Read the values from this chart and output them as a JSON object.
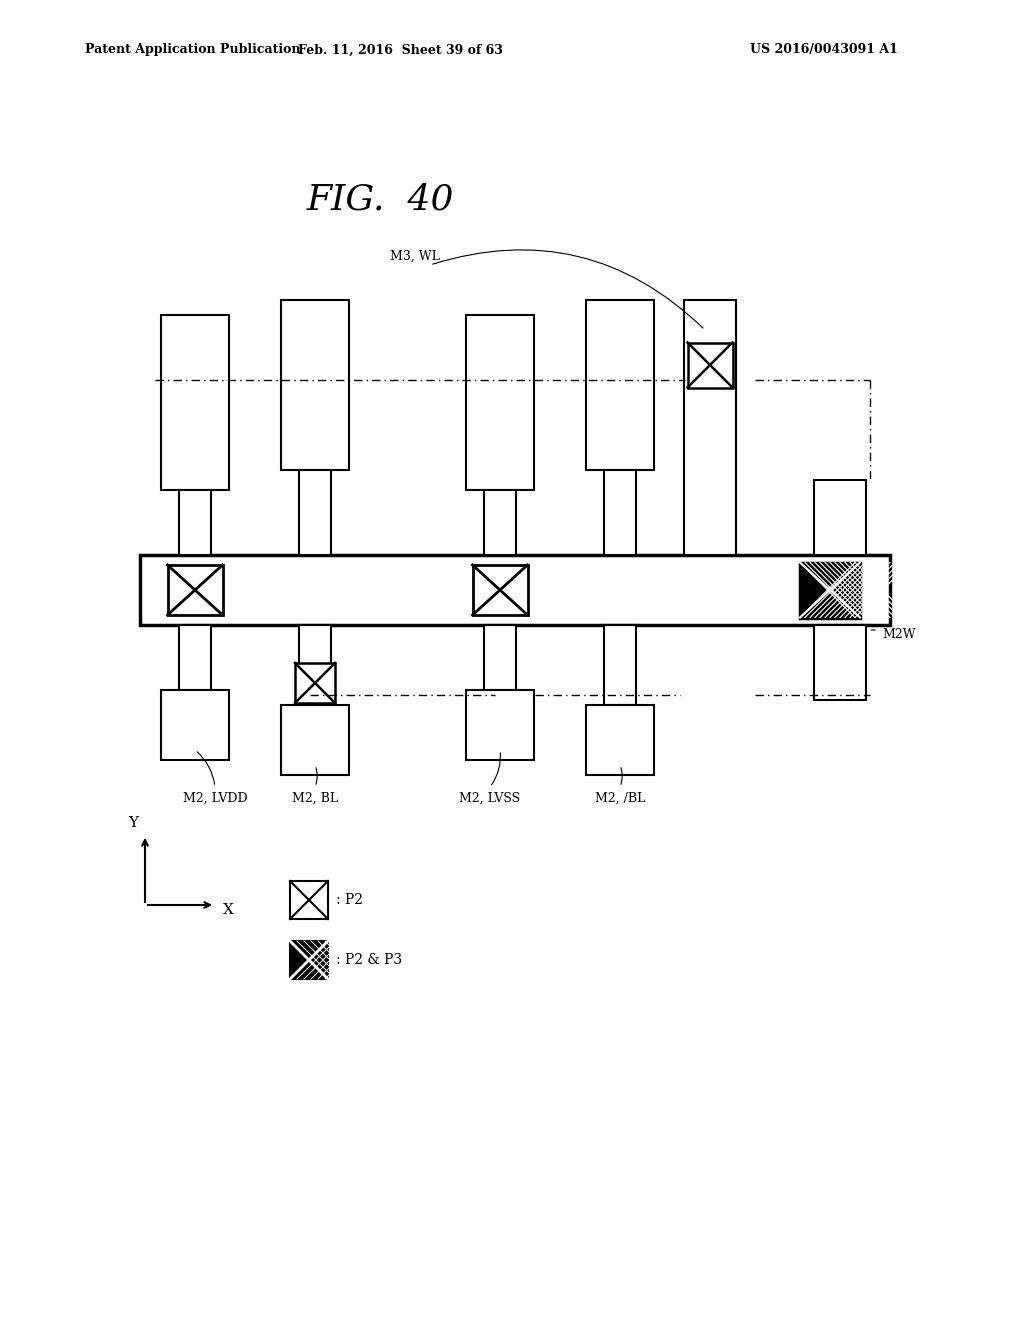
{
  "title": "FIG.  40",
  "header_left": "Patent Application Publication",
  "header_mid": "Feb. 11, 2016  Sheet 39 of 63",
  "header_right": "US 2016/0043091 A1",
  "fig_title": "FIG.  40",
  "background": "#ffffff",
  "line_color": "#000000",
  "label_m2_lvdd": "M2, LVDD",
  "label_m2_bl": "M2, BL",
  "label_m2_lvss": "M2, LVSS",
  "label_m2_bl2": "M2, /BL",
  "label_m3_wl": "M3, WL",
  "label_m2w": "M2W",
  "label_p2": ": P2",
  "label_p2p3": ": P2 & P3"
}
